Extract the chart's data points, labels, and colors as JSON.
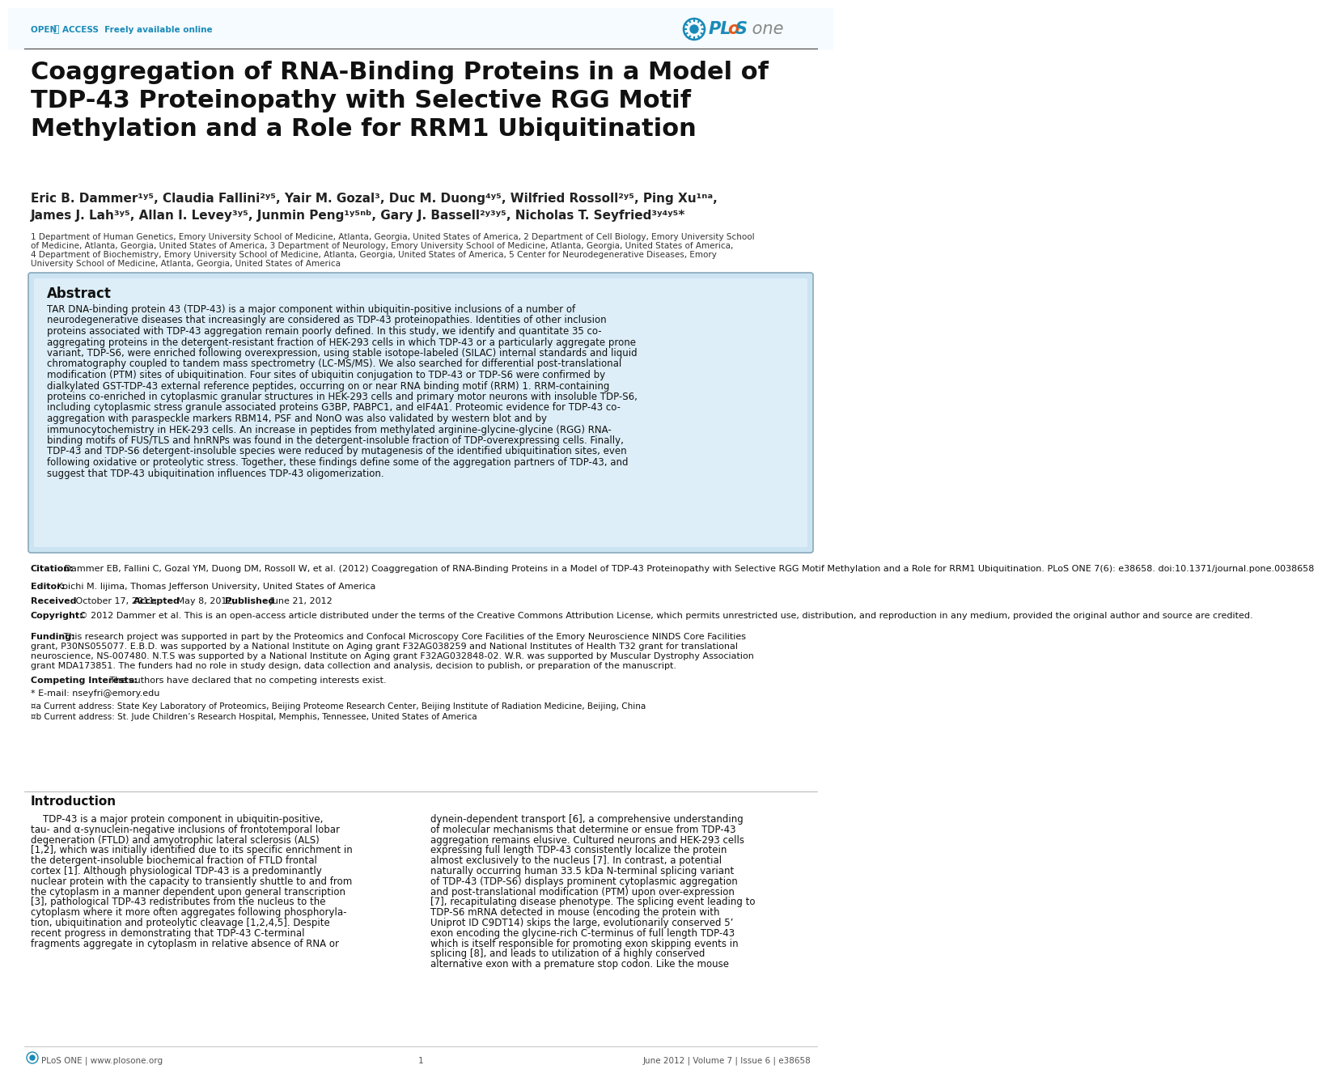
{
  "bg_color": "#ffffff",
  "header_line_color": "#555555",
  "open_access_text": "OPEN  ACCESS  Freely available online",
  "open_access_color": "#1a8ab8",
  "title": "Coaggregation of RNA-Binding Proteins in a Model of\nTDP-43 Proteinopathy with Selective RGG Motif\nMethylation and a Role for RRM1 Ubiquitination",
  "title_fontsize": 22,
  "title_color": "#111111",
  "authors_line1": "Eric B. Dammer¹ʸ⁵, Claudia Fallini²ʸ⁵, Yair M. Gozal³, Duc M. Duong⁴ʸ⁵, Wilfried Rossoll²ʸ⁵, Ping Xu¹ⁿᵃ,",
  "authors_line2": "James J. Lah³ʸ⁵, Allan I. Levey³ʸ⁵, Junmin Peng¹ʸ⁵ⁿᵇ, Gary J. Bassell²ʸ³ʸ⁵, Nicholas T. Seyfried³ʸ⁴ʸ⁵*",
  "authors_fontsize": 11,
  "authors_color": "#222222",
  "affiliations_lines": [
    "1 Department of Human Genetics, Emory University School of Medicine, Atlanta, Georgia, United States of America, 2 Department of Cell Biology, Emory University School",
    "of Medicine, Atlanta, Georgia, United States of America, 3 Department of Neurology, Emory University School of Medicine, Atlanta, Georgia, United States of America,",
    "4 Department of Biochemistry, Emory University School of Medicine, Atlanta, Georgia, United States of America, 5 Center for Neurodegenerative Diseases, Emory",
    "University School of Medicine, Atlanta, Georgia, United States of America"
  ],
  "affiliations_fontsize": 7.5,
  "affiliations_color": "#333333",
  "abstract_title": "Abstract",
  "abstract_bg": "#ddeef8",
  "abstract_border": "#aaccdd",
  "abstract_lines": [
    "TAR DNA-binding protein 43 (TDP-43) is a major component within ubiquitin-positive inclusions of a number of",
    "neurodegenerative diseases that increasingly are considered as TDP-43 proteinopathies. Identities of other inclusion",
    "proteins associated with TDP-43 aggregation remain poorly defined. In this study, we identify and quantitate 35 co-",
    "aggregating proteins in the detergent-resistant fraction of HEK-293 cells in which TDP-43 or a particularly aggregate prone",
    "variant, TDP-S6, were enriched following overexpression, using stable isotope-labeled (SILAC) internal standards and liquid",
    "chromatography coupled to tandem mass spectrometry (LC-MS/MS). We also searched for differential post-translational",
    "modification (PTM) sites of ubiquitination. Four sites of ubiquitin conjugation to TDP-43 or TDP-S6 were confirmed by",
    "dialkylated GST-TDP-43 external reference peptides, occurring on or near RNA binding motif (RRM) 1. RRM-containing",
    "proteins co-enriched in cytoplasmic granular structures in HEK-293 cells and primary motor neurons with insoluble TDP-S6,",
    "including cytoplasmic stress granule associated proteins G3BP, PABPC1, and eIF4A1. Proteomic evidence for TDP-43 co-",
    "aggregation with paraspeckle markers RBM14, PSF and NonO was also validated by western blot and by",
    "immunocytochemistry in HEK-293 cells. An increase in peptides from methylated arginine-glycine-glycine (RGG) RNA-",
    "binding motifs of FUS/TLS and hnRNPs was found in the detergent-insoluble fraction of TDP-overexpressing cells. Finally,",
    "TDP-43 and TDP-S6 detergent-insoluble species were reduced by mutagenesis of the identified ubiquitination sites, even",
    "following oxidative or proteolytic stress. Together, these findings define some of the aggregation partners of TDP-43, and",
    "suggest that TDP-43 ubiquitination influences TDP-43 oligomerization."
  ],
  "abstract_fontsize": 8.5,
  "citation_label": "Citation:",
  "citation_text": " Dammer EB, Fallini C, Gozal YM, Duong DM, Rossoll W, et al. (2012) Coaggregation of RNA-Binding Proteins in a Model of TDP-43 Proteinopathy with Selective RGG Motif Methylation and a Role for RRM1 Ubiquitination. PLoS ONE 7(6): e38658. doi:10.1371/journal.pone.0038658",
  "editor_label": "Editor:",
  "editor_text": " Koichi M. Iijima, Thomas Jefferson University, United States of America",
  "received_label": "Received",
  "received_text": " October 17, 2011; ",
  "accepted_label": "Accepted",
  "accepted_text": " May 8, 2012; ",
  "published_label": "Published",
  "published_text": " June 21, 2012",
  "copyright_label": "Copyright:",
  "copyright_text": " © 2012 Dammer et al. This is an open-access article distributed under the terms of the Creative Commons Attribution License, which permits unrestricted use, distribution, and reproduction in any medium, provided the original author and source are credited.",
  "funding_label": "Funding:",
  "funding_lines": [
    " This research project was supported in part by the Proteomics and Confocal Microscopy Core Facilities of the Emory Neuroscience NINDS Core Facilities",
    "grant, P30NS055077. E.B.D. was supported by a National Institute on Aging grant F32AG038259 and National Institutes of Health T32 grant for translational",
    "neuroscience, NS-007480. N.T.S was supported by a National Institute on Aging grant F32AG032848-02. W.R. was supported by Muscular Dystrophy Association",
    "grant MDA173851. The funders had no role in study design, data collection and analysis, decision to publish, or preparation of the manuscript."
  ],
  "competing_label": "Competing Interests:",
  "competing_text": " The authors have declared that no competing interests exist.",
  "email_text": "* E-mail: nseyfri@emory.edu",
  "footnote_a": "¤a Current address: State Key Laboratory of Proteomics, Beijing Proteome Research Center, Beijing Institute of Radiation Medicine, Beijing, China",
  "footnote_b": "¤b Current address: St. Jude Children’s Research Hospital, Memphis, Tennessee, United States of America",
  "section_title": "Introduction",
  "intro_left_lines": [
    "    TDP-43 is a major protein component in ubiquitin-positive,",
    "tau- and α-synuclein-negative inclusions of frontotemporal lobar",
    "degeneration (FTLD) and amyotrophic lateral sclerosis (ALS)",
    "[1,2], which was initially identified due to its specific enrichment in",
    "the detergent-insoluble biochemical fraction of FTLD frontal",
    "cortex [1]. Although physiological TDP-43 is a predominantly",
    "nuclear protein with the capacity to transiently shuttle to and from",
    "the cytoplasm in a manner dependent upon general transcription",
    "[3], pathological TDP-43 redistributes from the nucleus to the",
    "cytoplasm where it more often aggregates following phosphoryla-",
    "tion, ubiquitination and proteolytic cleavage [1,2,4,5]. Despite",
    "recent progress in demonstrating that TDP-43 C-terminal",
    "fragments aggregate in cytoplasm in relative absence of RNA or"
  ],
  "intro_right_lines": [
    "dynein-dependent transport [6], a comprehensive understanding",
    "of molecular mechanisms that determine or ensue from TDP-43",
    "aggregation remains elusive. Cultured neurons and HEK-293 cells",
    "expressing full length TDP-43 consistently localize the protein",
    "almost exclusively to the nucleus [7]. In contrast, a potential",
    "naturally occurring human 33.5 kDa N-terminal splicing variant",
    "of TDP-43 (TDP-S6) displays prominent cytoplasmic aggregation",
    "and post-translational modification (PTM) upon over-expression",
    "[7], recapitulating disease phenotype. The splicing event leading to",
    "TDP-S6 mRNA detected in mouse (encoding the protein with",
    "Uniprot ID C9DT14) skips the large, evolutionarily conserved 5’",
    "exon encoding the glycine-rich C-terminus of full length TDP-43",
    "which is itself responsible for promoting exon skipping events in",
    "splicing [8], and leads to utilization of a highly conserved",
    "alternative exon with a premature stop codon. Like the mouse"
  ],
  "intro_fontsize": 8.5,
  "footer_left": "PLoS ONE | www.plosone.org",
  "footer_center": "1",
  "footer_right": "June 2012 | Volume 7 | Issue 6 | e38658",
  "footer_color": "#555555",
  "small_fontsize": 7.5,
  "meta_fontsize": 8.0
}
